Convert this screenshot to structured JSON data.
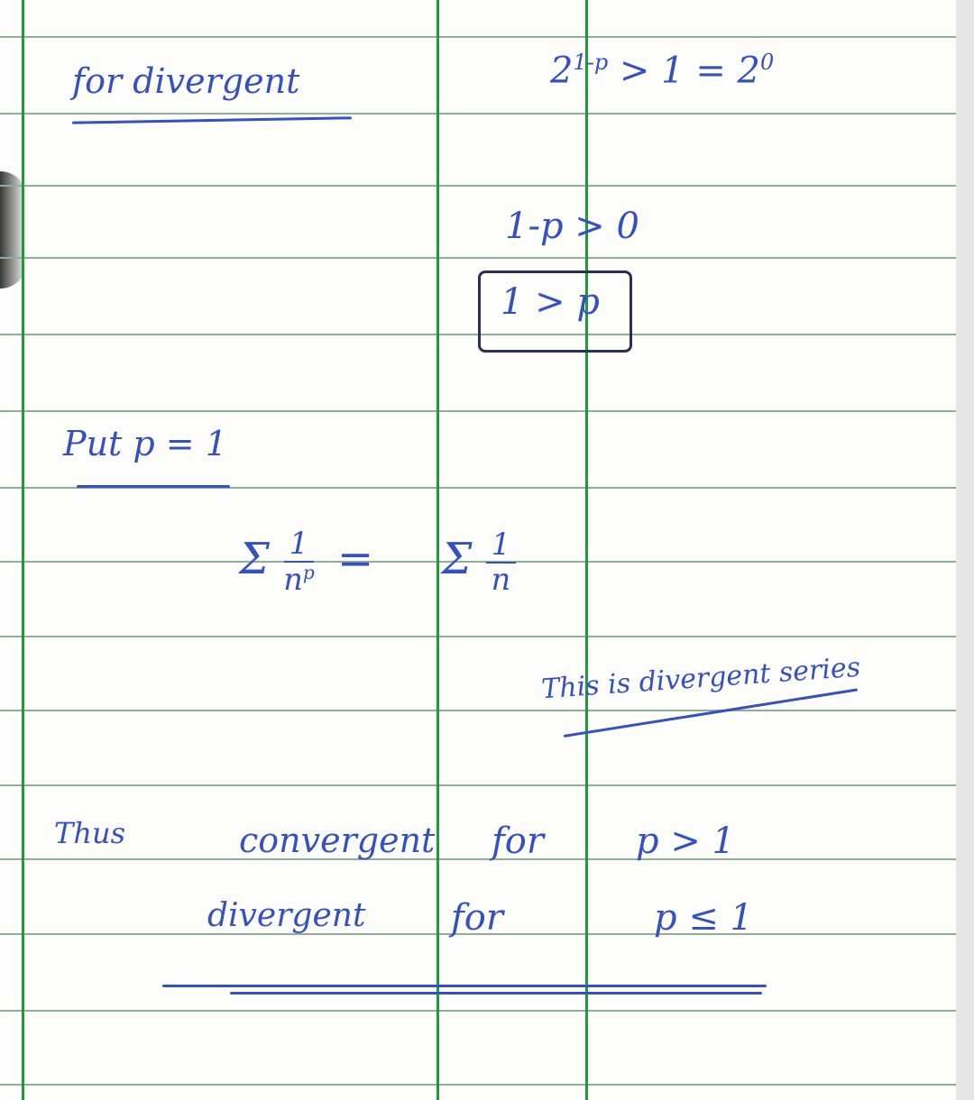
{
  "notes": {
    "heading": "for divergent",
    "eq1_base": "2",
    "eq1_exp": "1-p",
    "eq1_rest": "> 1 = 2",
    "eq1_exp2": "0",
    "eq2": "1-p > 0",
    "eq3_boxed": "1 > p",
    "put": "Put p = 1",
    "sum_sigma": "Σ",
    "sum_num": "1",
    "sum_den": "n",
    "sum_den_exp": "p",
    "equals": "=",
    "sum2_sigma": "Σ",
    "sum2_num": "1",
    "sum2_den": "n",
    "divergent_note": "This is divergent series",
    "thus": "Thus",
    "conclusion_1a": "convergent",
    "conclusion_1b": "for",
    "conclusion_1c": "p > 1",
    "conclusion_2a": "divergent",
    "conclusion_2b": "for",
    "conclusion_2c": "p ≤ 1"
  },
  "colors": {
    "ink": "#3550c0",
    "margin_lines": "#1f9a3a",
    "ruled_lines": "#8fae98"
  }
}
